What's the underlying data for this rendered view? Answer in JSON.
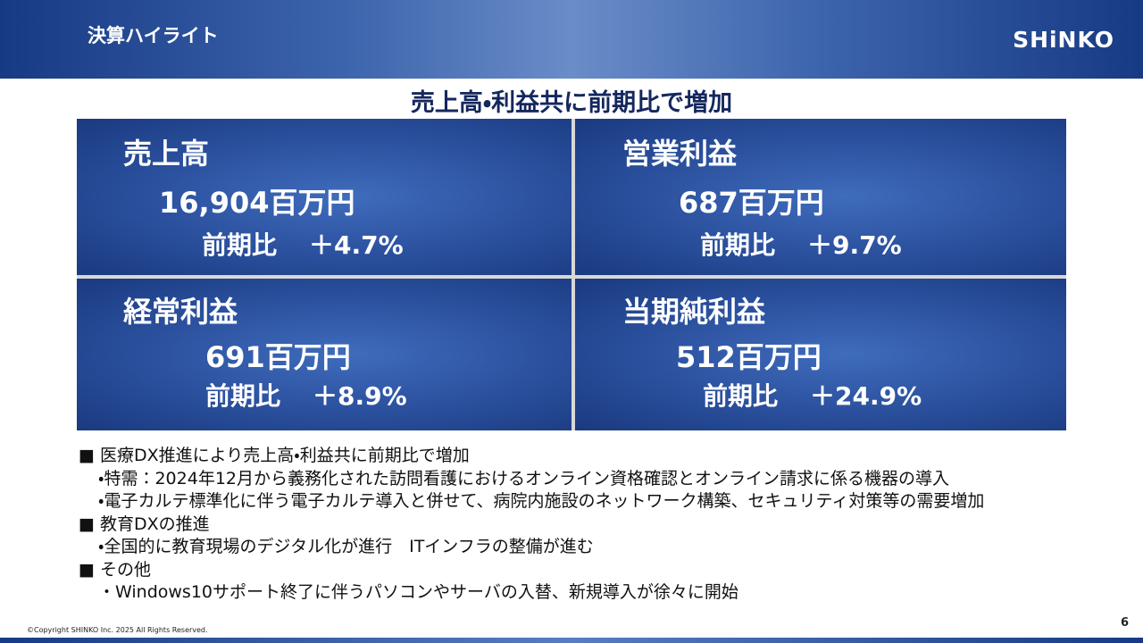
{
  "header": {
    "title": "決算ハイライト",
    "logo": "SHiNKO"
  },
  "headline": "売上高・利益共に前期比で増加",
  "cells": [
    {
      "label": "売上高",
      "value": "16,904",
      "unit": "百万円",
      "comparison_label": "前期比",
      "change": "＋4.7%"
    },
    {
      "label": "営業利益",
      "value": "687",
      "unit": "百万円",
      "comparison_label": "前期比",
      "change": "＋9.7%"
    },
    {
      "label": "経常利益",
      "value": "691",
      "unit": "百万円",
      "comparison_label": "前期比",
      "change": "＋8.9%"
    },
    {
      "label": "当期純利益",
      "value": "512",
      "unit": "百万円",
      "comparison_label": "前期比",
      "change": "＋24.9%"
    }
  ],
  "sections": [
    {
      "heading": "医療DX推進により売上高・利益共に前期比で増加",
      "items": [
        "特需：2024年12月から義務化された訪問看護におけるオンライン資格確認とオンライン請求に係る機器の導入",
        "電子カルテ標準化に伴う電子カルテ導入と併せて、病院内施設のネットワーク構築、セキュリティ対策等の需要増加"
      ]
    },
    {
      "heading": "教育DXの推進",
      "items": [
        "全国的に教育現場のデジタル化が進行　ITインフラの整備が進む"
      ]
    },
    {
      "heading": "その他",
      "items": [
        "Windows10サポート終了に伴うパソコンやサーバの入替、新規導入が徐々に開始"
      ]
    }
  ],
  "footer": {
    "copyright": "©Copyright SHINKO Inc. 2025 All Rights Reserved.",
    "page": "6"
  }
}
